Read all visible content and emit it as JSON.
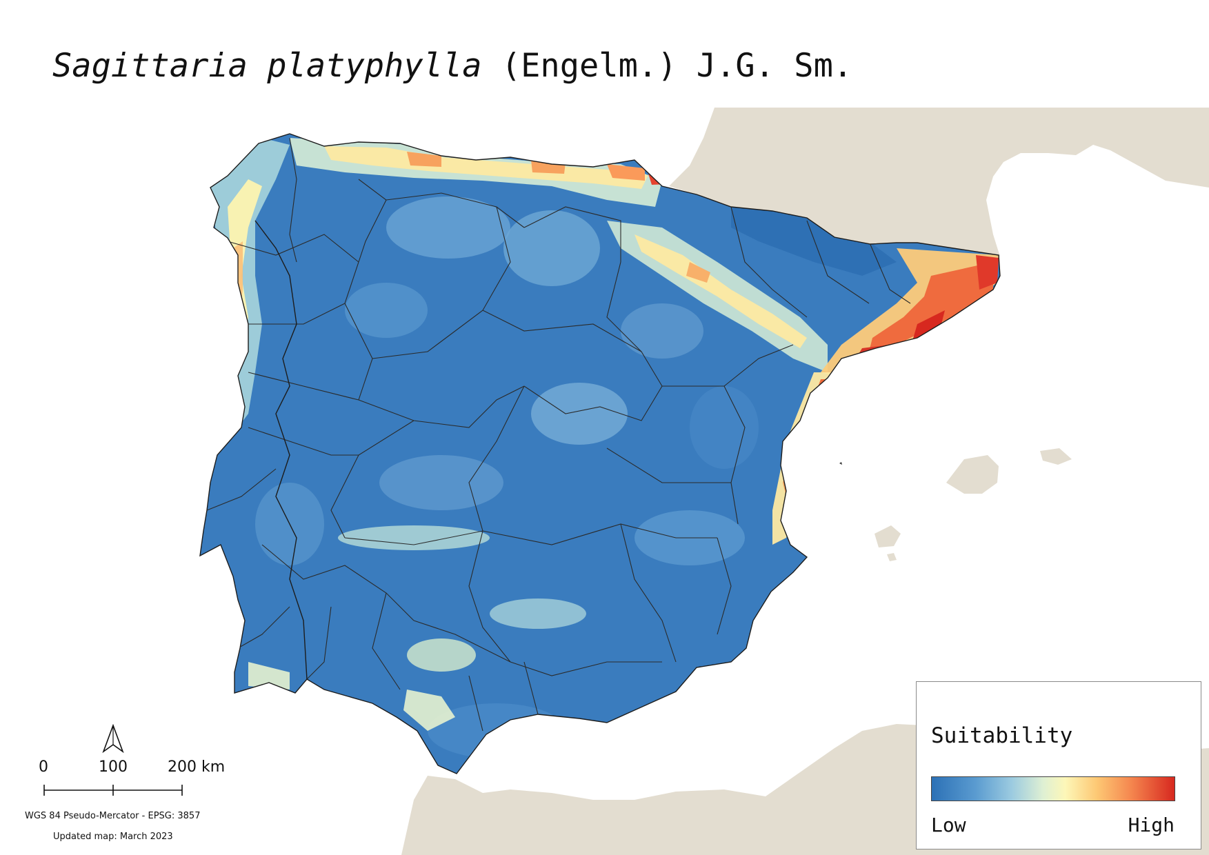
{
  "title": {
    "species": "Sagittaria platyphylla",
    "authority": " (Engelm.) J.G. Sm."
  },
  "legend": {
    "title": "Suitability",
    "low_label": "Low",
    "high_label": "High",
    "colors": [
      "#2c71b6",
      "#5a9bd0",
      "#9ccbe0",
      "#dff0d3",
      "#fdf7b8",
      "#fdc874",
      "#f5874f",
      "#d7281f"
    ]
  },
  "scale_bar": {
    "labels": [
      "0",
      "100",
      "200 km"
    ]
  },
  "crs_text": "WGS 84 Pseudo-Mercator  - EPSG: 3857",
  "updated_text": "Updated map: March 2023",
  "colors": {
    "sea": "#ffffff",
    "neighbor_land": "#e3ddd0",
    "iberia_base": "#3b7dbf",
    "boundary": "#2a2a2a"
  },
  "icons": {
    "north_arrow": "north-arrow-icon"
  }
}
